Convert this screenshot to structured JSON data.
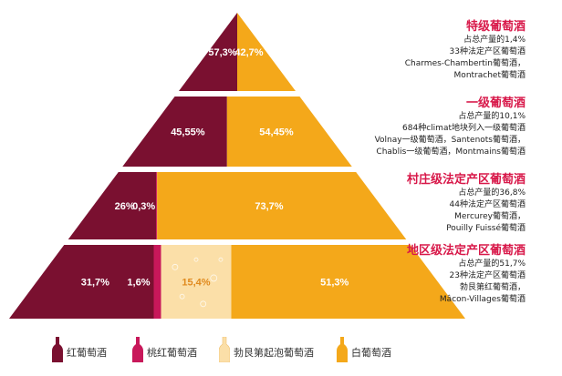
{
  "colors": {
    "red": "#7a1030",
    "rose": "#c8185a",
    "sparkling": "#fbdfa8",
    "white": "#f4a81a",
    "title": "#d8194a"
  },
  "tiers": [
    {
      "title": "特级葡萄酒",
      "lines": [
        "占总产量的1,4%",
        "33种法定产区葡萄酒",
        "Charmes-Chambertin葡萄酒，",
        "Montrachet葡萄酒"
      ]
    },
    {
      "title": "一级葡萄酒",
      "lines": [
        "占总产量的10,1%",
        "684种climat地块列入一级葡萄酒",
        "Volnay一级葡萄酒，Santenots葡萄酒，",
        "Chablis一级葡萄酒，Montmains葡萄酒"
      ]
    },
    {
      "title": "村庄级法定产区葡萄酒",
      "lines": [
        "占总产量的36,8%",
        "44种法定产区葡萄酒",
        "Mercurey葡萄酒，",
        "Pouilly Fuissé葡萄酒"
      ]
    },
    {
      "title": "地区级法定产区葡萄酒",
      "lines": [
        "占总产量的51,7%",
        "23种法定产区葡萄酒",
        "勃艮第红葡萄酒，",
        "Mâcon-Villages葡萄酒"
      ]
    }
  ],
  "legend": [
    {
      "label": "红葡萄酒",
      "color": "#7a1030"
    },
    {
      "label": "桃红葡萄酒",
      "color": "#c8185a"
    },
    {
      "label": "勃艮第起泡葡萄酒",
      "color": "#fbdfa8"
    },
    {
      "label": "白葡萄酒",
      "color": "#f4a81a"
    }
  ],
  "chart_data": {
    "type": "bar",
    "categories": [
      "特级葡萄酒",
      "一级葡萄酒",
      "村庄级法定产区葡萄酒",
      "地区级法定产区葡萄酒"
    ],
    "series": [
      {
        "name": "红葡萄酒",
        "values": [
          57.3,
          45.55,
          26,
          31.7
        ],
        "labels": [
          "57,3%",
          "45,55%",
          "26%",
          "31,7%"
        ]
      },
      {
        "name": "桃红葡萄酒",
        "values": [
          0,
          0,
          0.3,
          1.6
        ],
        "labels": [
          "",
          "",
          "0,3%",
          "1,6%"
        ]
      },
      {
        "name": "勃艮第起泡葡萄酒",
        "values": [
          0,
          0,
          0,
          15.4
        ],
        "labels": [
          "",
          "",
          "",
          "15,4%"
        ]
      },
      {
        "name": "白葡萄酒",
        "values": [
          42.7,
          54.45,
          73.7,
          51.3
        ],
        "labels": [
          "42,7%",
          "54,45%",
          "73,7%",
          "51,3%"
        ]
      }
    ]
  }
}
